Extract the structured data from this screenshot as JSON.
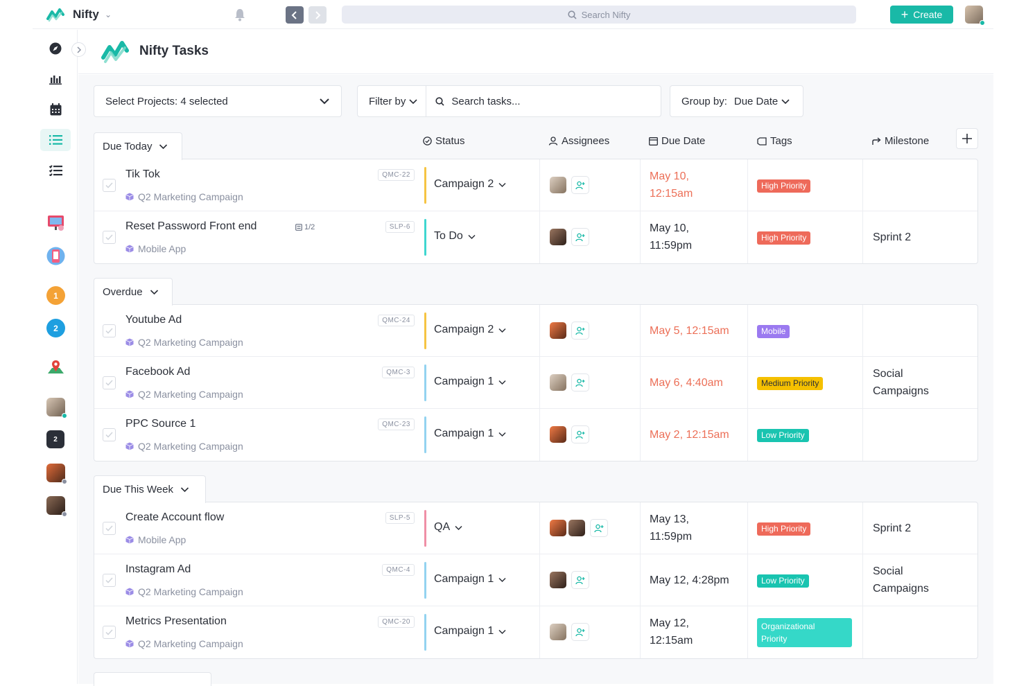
{
  "app": {
    "name": "Nifty",
    "search_placeholder": "Search Nifty",
    "create_label": "Create"
  },
  "page": {
    "title": "Nifty Tasks"
  },
  "filters": {
    "projects": "Select Projects: 4 selected",
    "filter_by": "Filter by",
    "search_placeholder": "Search tasks...",
    "group_by_label": "Group by:",
    "group_by_value": "Due Date"
  },
  "columns": {
    "status": "Status",
    "assignees": "Assignees",
    "due_date": "Due Date",
    "tags": "Tags",
    "milestone": "Milestone"
  },
  "sidebar_badges": {
    "p1": "1",
    "p2": "2",
    "p3": "2"
  },
  "colors": {
    "accent": "#19b9a7",
    "overdue": "#ec6f57",
    "high": "#ee6a5a",
    "medium": "#f5c000",
    "low": "#19c4b0",
    "mobile": "#9b7af0",
    "org": "#35d8c8"
  },
  "groups": [
    {
      "label": "Due Today",
      "rows": [
        {
          "name": "Tik Tok",
          "project": "Q2 Marketing Campaign",
          "code": "QMC-22",
          "subtasks": "",
          "status": "Campaign 2",
          "status_color": "#f6c443",
          "assignees": [
            "old"
          ],
          "due": "May 10,\n12:15am",
          "due_red": true,
          "tag": "High Priority",
          "tag_color": "#ee6a5a",
          "milestone": ""
        },
        {
          "name": "Reset Password Front end",
          "project": "Mobile App",
          "code": "SLP-6",
          "subtasks": "1/2",
          "status": "To Do",
          "status_color": "#3fd6d0",
          "assignees": [
            "woman"
          ],
          "due": "May 10,\n11:59pm",
          "due_red": false,
          "tag": "High Priority",
          "tag_color": "#ee6a5a",
          "milestone": "Sprint 2"
        }
      ]
    },
    {
      "label": "Overdue",
      "rows": [
        {
          "name": "Youtube Ad",
          "project": "Q2 Marketing Campaign",
          "code": "QMC-24",
          "subtasks": "",
          "status": "Campaign 2",
          "status_color": "#f6c443",
          "assignees": [
            "man"
          ],
          "due": "May 5, 12:15am",
          "due_red": true,
          "tag": "Mobile",
          "tag_color": "#9b7af0",
          "milestone": ""
        },
        {
          "name": "Facebook Ad",
          "project": "Q2 Marketing Campaign",
          "code": "QMC-3",
          "subtasks": "",
          "status": "Campaign 1",
          "status_color": "#93d3f0",
          "assignees": [
            "old"
          ],
          "due": "May 6, 4:40am",
          "due_red": true,
          "tag": "Medium Priority",
          "tag_color": "#f5c000",
          "milestone": "Social\nCampaigns"
        },
        {
          "name": "PPC Source 1",
          "project": "Q2 Marketing Campaign",
          "code": "QMC-23",
          "subtasks": "",
          "status": "Campaign 1",
          "status_color": "#93d3f0",
          "assignees": [
            "man"
          ],
          "due": "May 2, 12:15am",
          "due_red": true,
          "tag": "Low Priority",
          "tag_color": "#19c4b0",
          "milestone": ""
        }
      ]
    },
    {
      "label": "Due This Week",
      "rows": [
        {
          "name": "Create Account flow",
          "project": "Mobile App",
          "code": "SLP-5",
          "subtasks": "",
          "status": "QA",
          "status_color": "#ef8fa6",
          "assignees": [
            "man",
            "woman"
          ],
          "due": "May 13,\n11:59pm",
          "due_red": false,
          "tag": "High Priority",
          "tag_color": "#ee6a5a",
          "milestone": "Sprint 2"
        },
        {
          "name": "Instagram Ad",
          "project": "Q2 Marketing Campaign",
          "code": "QMC-4",
          "subtasks": "",
          "status": "Campaign 1",
          "status_color": "#93d3f0",
          "assignees": [
            "woman"
          ],
          "due": "May 12, 4:28pm",
          "due_red": false,
          "tag": "Low Priority",
          "tag_color": "#19c4b0",
          "milestone": "Social\nCampaigns"
        },
        {
          "name": "Metrics Presentation",
          "project": "Q2 Marketing Campaign",
          "code": "QMC-20",
          "subtasks": "",
          "status": "Campaign 1",
          "status_color": "#93d3f0",
          "assignees": [
            "old"
          ],
          "due": "May 12,\n12:15am",
          "due_red": false,
          "tag": "Organizational\nPriority",
          "tag_color": "#35d8c8",
          "milestone": ""
        }
      ]
    }
  ]
}
